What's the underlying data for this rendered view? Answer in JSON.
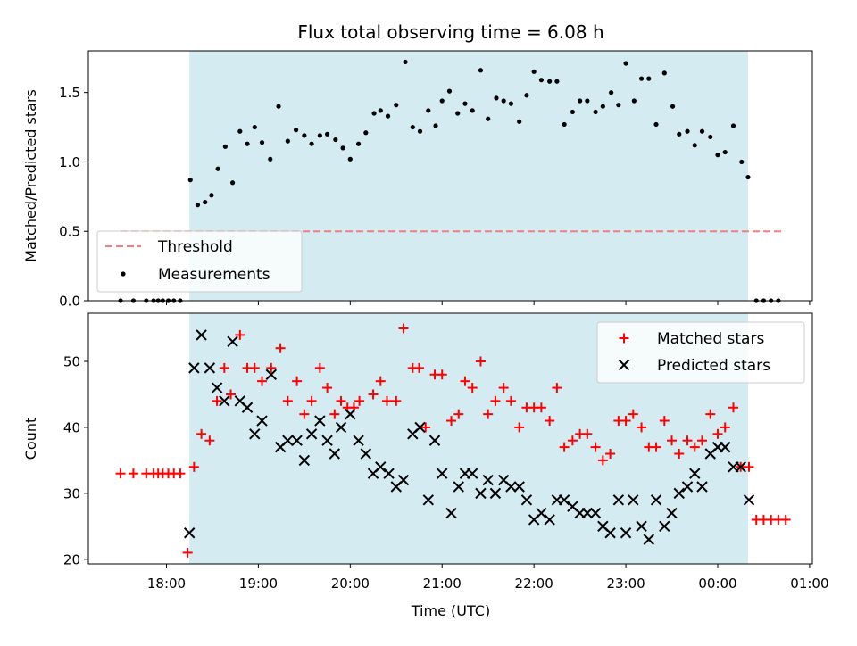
{
  "figure": {
    "title": "Flux total observing time = 6.08 h",
    "xlabel": "Time (UTC)"
  },
  "colors": {
    "shade": "#d3ebf1",
    "threshold": "#f08080",
    "matched": "#ff0000",
    "predicted": "#000000",
    "measurement": "#000000"
  },
  "chart_data": [
    {
      "type": "scatter",
      "ylabel": "Matched/Predicted stars",
      "xlim": [
        17.15,
        25.03
      ],
      "ylim": [
        0,
        1.8
      ],
      "yticks": [
        0.0,
        0.5,
        1.0,
        1.5
      ],
      "ytick_labels": [
        "0.0",
        "0.5",
        "1.0",
        "1.5"
      ],
      "shaded_span": [
        18.25,
        24.33
      ],
      "grid": false,
      "legend": {
        "position": "lower-left",
        "entries": [
          "Threshold",
          "Measurements"
        ]
      },
      "threshold": {
        "name": "Threshold",
        "y": 0.5,
        "x": [
          17.5,
          24.7
        ]
      },
      "series": [
        {
          "name": "Measurements",
          "points": [
            [
              17.5,
              0.0
            ],
            [
              17.64,
              0.0
            ],
            [
              17.78,
              0.0
            ],
            [
              17.86,
              0.0
            ],
            [
              17.91,
              0.0
            ],
            [
              17.96,
              0.0
            ],
            [
              18.02,
              0.0
            ],
            [
              18.08,
              0.0
            ],
            [
              18.15,
              0.0
            ],
            [
              18.26,
              0.87
            ],
            [
              18.34,
              0.69
            ],
            [
              18.42,
              0.71
            ],
            [
              18.49,
              0.76
            ],
            [
              18.56,
              0.95
            ],
            [
              18.64,
              1.11
            ],
            [
              18.72,
              0.85
            ],
            [
              18.8,
              1.22
            ],
            [
              18.88,
              1.13
            ],
            [
              18.96,
              1.25
            ],
            [
              19.04,
              1.14
            ],
            [
              19.13,
              1.02
            ],
            [
              19.22,
              1.4
            ],
            [
              19.32,
              1.15
            ],
            [
              19.41,
              1.23
            ],
            [
              19.5,
              1.19
            ],
            [
              19.58,
              1.13
            ],
            [
              19.67,
              1.19
            ],
            [
              19.75,
              1.2
            ],
            [
              19.84,
              1.16
            ],
            [
              19.92,
              1.1
            ],
            [
              20.0,
              1.02
            ],
            [
              20.09,
              1.13
            ],
            [
              20.17,
              1.21
            ],
            [
              20.26,
              1.35
            ],
            [
              20.33,
              1.37
            ],
            [
              20.41,
              1.33
            ],
            [
              20.5,
              1.41
            ],
            [
              20.6,
              1.72
            ],
            [
              20.68,
              1.25
            ],
            [
              20.76,
              1.22
            ],
            [
              20.85,
              1.37
            ],
            [
              20.93,
              1.26
            ],
            [
              21.0,
              1.44
            ],
            [
              21.08,
              1.51
            ],
            [
              21.17,
              1.35
            ],
            [
              21.25,
              1.42
            ],
            [
              21.33,
              1.37
            ],
            [
              21.42,
              1.66
            ],
            [
              21.5,
              1.31
            ],
            [
              21.59,
              1.46
            ],
            [
              21.67,
              1.44
            ],
            [
              21.75,
              1.42
            ],
            [
              21.84,
              1.29
            ],
            [
              21.92,
              1.48
            ],
            [
              22.0,
              1.65
            ],
            [
              22.08,
              1.59
            ],
            [
              22.17,
              1.58
            ],
            [
              22.25,
              1.58
            ],
            [
              22.33,
              1.27
            ],
            [
              22.42,
              1.36
            ],
            [
              22.5,
              1.44
            ],
            [
              22.58,
              1.44
            ],
            [
              22.67,
              1.36
            ],
            [
              22.75,
              1.4
            ],
            [
              22.84,
              1.5
            ],
            [
              22.92,
              1.41
            ],
            [
              23.0,
              1.71
            ],
            [
              23.09,
              1.44
            ],
            [
              23.17,
              1.6
            ],
            [
              23.25,
              1.6
            ],
            [
              23.33,
              1.27
            ],
            [
              23.42,
              1.64
            ],
            [
              23.51,
              1.4
            ],
            [
              23.58,
              1.2
            ],
            [
              23.67,
              1.22
            ],
            [
              23.75,
              1.12
            ],
            [
              23.83,
              1.22
            ],
            [
              23.92,
              1.18
            ],
            [
              24.0,
              1.05
            ],
            [
              24.08,
              1.07
            ],
            [
              24.17,
              1.26
            ],
            [
              24.26,
              1.0
            ],
            [
              24.33,
              0.89
            ],
            [
              24.42,
              0.0
            ],
            [
              24.5,
              0.0
            ],
            [
              24.58,
              0.0
            ],
            [
              24.66,
              0.0
            ]
          ]
        }
      ]
    },
    {
      "type": "scatter",
      "ylabel": "Count",
      "xlim": [
        17.15,
        25.03
      ],
      "ylim": [
        19.3,
        57.3
      ],
      "yticks": [
        20,
        30,
        40,
        50
      ],
      "ytick_labels": [
        "20",
        "30",
        "40",
        "50"
      ],
      "xticks": [
        18,
        19,
        20,
        21,
        22,
        23,
        24,
        25
      ],
      "xtick_labels": [
        "18:00",
        "19:00",
        "20:00",
        "21:00",
        "22:00",
        "23:00",
        "00:00",
        "01:00"
      ],
      "shaded_span": [
        18.25,
        24.33
      ],
      "grid": false,
      "legend": {
        "position": "top-right",
        "entries": [
          "Matched stars",
          "Predicted stars"
        ]
      },
      "series": [
        {
          "name": "Matched stars",
          "marker": "plus",
          "points": [
            [
              17.5,
              33
            ],
            [
              17.64,
              33
            ],
            [
              17.78,
              33
            ],
            [
              17.86,
              33
            ],
            [
              17.91,
              33
            ],
            [
              17.96,
              33
            ],
            [
              18.02,
              33
            ],
            [
              18.08,
              33
            ],
            [
              18.15,
              33
            ],
            [
              18.23,
              21
            ],
            [
              18.3,
              34
            ],
            [
              18.38,
              39
            ],
            [
              18.47,
              38
            ],
            [
              18.55,
              44
            ],
            [
              18.63,
              49
            ],
            [
              18.7,
              45
            ],
            [
              18.8,
              54
            ],
            [
              18.88,
              49
            ],
            [
              18.96,
              49
            ],
            [
              19.04,
              47
            ],
            [
              19.14,
              49
            ],
            [
              19.24,
              52
            ],
            [
              19.32,
              44
            ],
            [
              19.42,
              47
            ],
            [
              19.5,
              42
            ],
            [
              19.58,
              44
            ],
            [
              19.67,
              49
            ],
            [
              19.75,
              46
            ],
            [
              19.83,
              42
            ],
            [
              19.9,
              44
            ],
            [
              19.97,
              43
            ],
            [
              20.04,
              43
            ],
            [
              20.1,
              44
            ],
            [
              20.25,
              45
            ],
            [
              20.33,
              47
            ],
            [
              20.4,
              44
            ],
            [
              20.5,
              44
            ],
            [
              20.58,
              55
            ],
            [
              20.68,
              49
            ],
            [
              20.75,
              49
            ],
            [
              20.82,
              40
            ],
            [
              20.92,
              48
            ],
            [
              21.0,
              48
            ],
            [
              21.1,
              41
            ],
            [
              21.18,
              42
            ],
            [
              21.25,
              47
            ],
            [
              21.33,
              46
            ],
            [
              21.42,
              50
            ],
            [
              21.5,
              42
            ],
            [
              21.58,
              44
            ],
            [
              21.67,
              46
            ],
            [
              21.75,
              44
            ],
            [
              21.84,
              40
            ],
            [
              21.92,
              43
            ],
            [
              22.0,
              43
            ],
            [
              22.08,
              43
            ],
            [
              22.17,
              41
            ],
            [
              22.25,
              46
            ],
            [
              22.33,
              37
            ],
            [
              22.42,
              38
            ],
            [
              22.5,
              39
            ],
            [
              22.58,
              39
            ],
            [
              22.67,
              37
            ],
            [
              22.75,
              35
            ],
            [
              22.83,
              36
            ],
            [
              22.92,
              41
            ],
            [
              23.0,
              41
            ],
            [
              23.08,
              42
            ],
            [
              23.17,
              40
            ],
            [
              23.25,
              37
            ],
            [
              23.33,
              37
            ],
            [
              23.42,
              41
            ],
            [
              23.5,
              38
            ],
            [
              23.58,
              36
            ],
            [
              23.67,
              38
            ],
            [
              23.75,
              37
            ],
            [
              23.83,
              38
            ],
            [
              23.92,
              42
            ],
            [
              24.0,
              39
            ],
            [
              24.08,
              40
            ],
            [
              24.17,
              43
            ],
            [
              24.25,
              34
            ],
            [
              24.34,
              34
            ],
            [
              24.42,
              26
            ],
            [
              24.5,
              26
            ],
            [
              24.58,
              26
            ],
            [
              24.66,
              26
            ],
            [
              24.74,
              26
            ]
          ]
        },
        {
          "name": "Predicted stars",
          "marker": "x",
          "points": [
            [
              18.25,
              24
            ],
            [
              18.3,
              49
            ],
            [
              18.38,
              54
            ],
            [
              18.47,
              49
            ],
            [
              18.55,
              46
            ],
            [
              18.63,
              44
            ],
            [
              18.72,
              53
            ],
            [
              18.8,
              44
            ],
            [
              18.88,
              43
            ],
            [
              18.96,
              39
            ],
            [
              19.04,
              41
            ],
            [
              19.14,
              48
            ],
            [
              19.24,
              37
            ],
            [
              19.32,
              38
            ],
            [
              19.42,
              38
            ],
            [
              19.5,
              35
            ],
            [
              19.58,
              39
            ],
            [
              19.67,
              41
            ],
            [
              19.75,
              38
            ],
            [
              19.83,
              36
            ],
            [
              19.9,
              40
            ],
            [
              20.0,
              42
            ],
            [
              20.09,
              38
            ],
            [
              20.17,
              36
            ],
            [
              20.25,
              33
            ],
            [
              20.33,
              34
            ],
            [
              20.42,
              33
            ],
            [
              20.5,
              31
            ],
            [
              20.58,
              32
            ],
            [
              20.68,
              39
            ],
            [
              20.76,
              40
            ],
            [
              20.85,
              29
            ],
            [
              20.92,
              38
            ],
            [
              21.0,
              33
            ],
            [
              21.1,
              27
            ],
            [
              21.18,
              31
            ],
            [
              21.25,
              33
            ],
            [
              21.33,
              33
            ],
            [
              21.42,
              30
            ],
            [
              21.5,
              32
            ],
            [
              21.58,
              30
            ],
            [
              21.67,
              32
            ],
            [
              21.75,
              31
            ],
            [
              21.84,
              31
            ],
            [
              21.92,
              29
            ],
            [
              22.0,
              26
            ],
            [
              22.08,
              27
            ],
            [
              22.17,
              26
            ],
            [
              22.25,
              29
            ],
            [
              22.33,
              29
            ],
            [
              22.42,
              28
            ],
            [
              22.5,
              27
            ],
            [
              22.58,
              27
            ],
            [
              22.67,
              27
            ],
            [
              22.75,
              25
            ],
            [
              22.83,
              24
            ],
            [
              22.92,
              29
            ],
            [
              23.0,
              24
            ],
            [
              23.08,
              29
            ],
            [
              23.17,
              25
            ],
            [
              23.25,
              23
            ],
            [
              23.33,
              29
            ],
            [
              23.42,
              25
            ],
            [
              23.5,
              27
            ],
            [
              23.58,
              30
            ],
            [
              23.67,
              31
            ],
            [
              23.75,
              33
            ],
            [
              23.83,
              31
            ],
            [
              23.92,
              36
            ],
            [
              24.0,
              37
            ],
            [
              24.08,
              37
            ],
            [
              24.17,
              34
            ],
            [
              24.25,
              34
            ],
            [
              24.34,
              29
            ]
          ]
        }
      ]
    }
  ]
}
